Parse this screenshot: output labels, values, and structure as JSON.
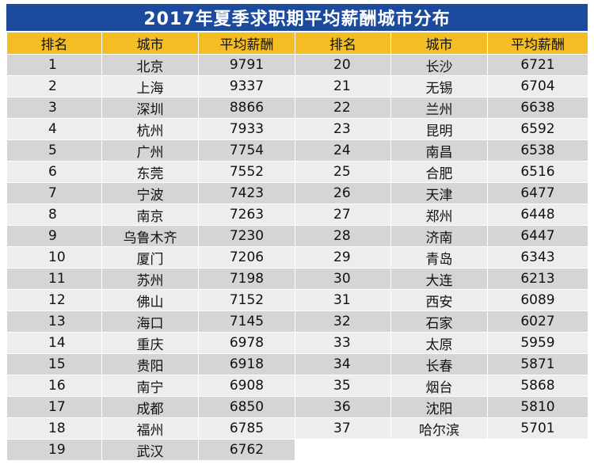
{
  "title": "2017年夏季求职期平均薪酬城市分布",
  "headers": {
    "rank": "排名",
    "city": "城市",
    "salary": "平均薪酬"
  },
  "left": [
    {
      "rank": "1",
      "city": "北京",
      "salary": "9791"
    },
    {
      "rank": "2",
      "city": "上海",
      "salary": "9337"
    },
    {
      "rank": "3",
      "city": "深圳",
      "salary": "8866"
    },
    {
      "rank": "4",
      "city": "杭州",
      "salary": "7933"
    },
    {
      "rank": "5",
      "city": "广州",
      "salary": "7754"
    },
    {
      "rank": "6",
      "city": "东莞",
      "salary": "7552"
    },
    {
      "rank": "7",
      "city": "宁波",
      "salary": "7423"
    },
    {
      "rank": "8",
      "city": "南京",
      "salary": "7263"
    },
    {
      "rank": "9",
      "city": "乌鲁木齐",
      "salary": "7230"
    },
    {
      "rank": "10",
      "city": "厦门",
      "salary": "7206"
    },
    {
      "rank": "11",
      "city": "苏州",
      "salary": "7198"
    },
    {
      "rank": "12",
      "city": "佛山",
      "salary": "7152"
    },
    {
      "rank": "13",
      "city": "海口",
      "salary": "7145"
    },
    {
      "rank": "14",
      "city": "重庆",
      "salary": "6978"
    },
    {
      "rank": "15",
      "city": "贵阳",
      "salary": "6918"
    },
    {
      "rank": "16",
      "city": "南宁",
      "salary": "6908"
    },
    {
      "rank": "17",
      "city": "成都",
      "salary": "6850"
    },
    {
      "rank": "18",
      "city": "福州",
      "salary": "6785"
    },
    {
      "rank": "19",
      "city": "武汉",
      "salary": "6762"
    }
  ],
  "right": [
    {
      "rank": "20",
      "city": "长沙",
      "salary": "6721"
    },
    {
      "rank": "21",
      "city": "无锡",
      "salary": "6704"
    },
    {
      "rank": "22",
      "city": "兰州",
      "salary": "6638"
    },
    {
      "rank": "23",
      "city": "昆明",
      "salary": "6592"
    },
    {
      "rank": "24",
      "city": "南昌",
      "salary": "6538"
    },
    {
      "rank": "25",
      "city": "合肥",
      "salary": "6516"
    },
    {
      "rank": "26",
      "city": "天津",
      "salary": "6477"
    },
    {
      "rank": "27",
      "city": "郑州",
      "salary": "6448"
    },
    {
      "rank": "28",
      "city": "济南",
      "salary": "6447"
    },
    {
      "rank": "29",
      "city": "青岛",
      "salary": "6343"
    },
    {
      "rank": "30",
      "city": "大连",
      "salary": "6213"
    },
    {
      "rank": "31",
      "city": "西安",
      "salary": "6089"
    },
    {
      "rank": "32",
      "city": "石家",
      "salary": "6027"
    },
    {
      "rank": "33",
      "city": "太原",
      "salary": "5959"
    },
    {
      "rank": "34",
      "city": "长春",
      "salary": "5871"
    },
    {
      "rank": "35",
      "city": "烟台",
      "salary": "5868"
    },
    {
      "rank": "36",
      "city": "沈阳",
      "salary": "5810"
    },
    {
      "rank": "37",
      "city": "哈尔滨",
      "salary": "5701"
    }
  ],
  "colors": {
    "title_bg": "#1c4a9c",
    "header_bg": "#f4bd24",
    "row_dark": "#d5d5d5",
    "row_light": "#ededed"
  }
}
